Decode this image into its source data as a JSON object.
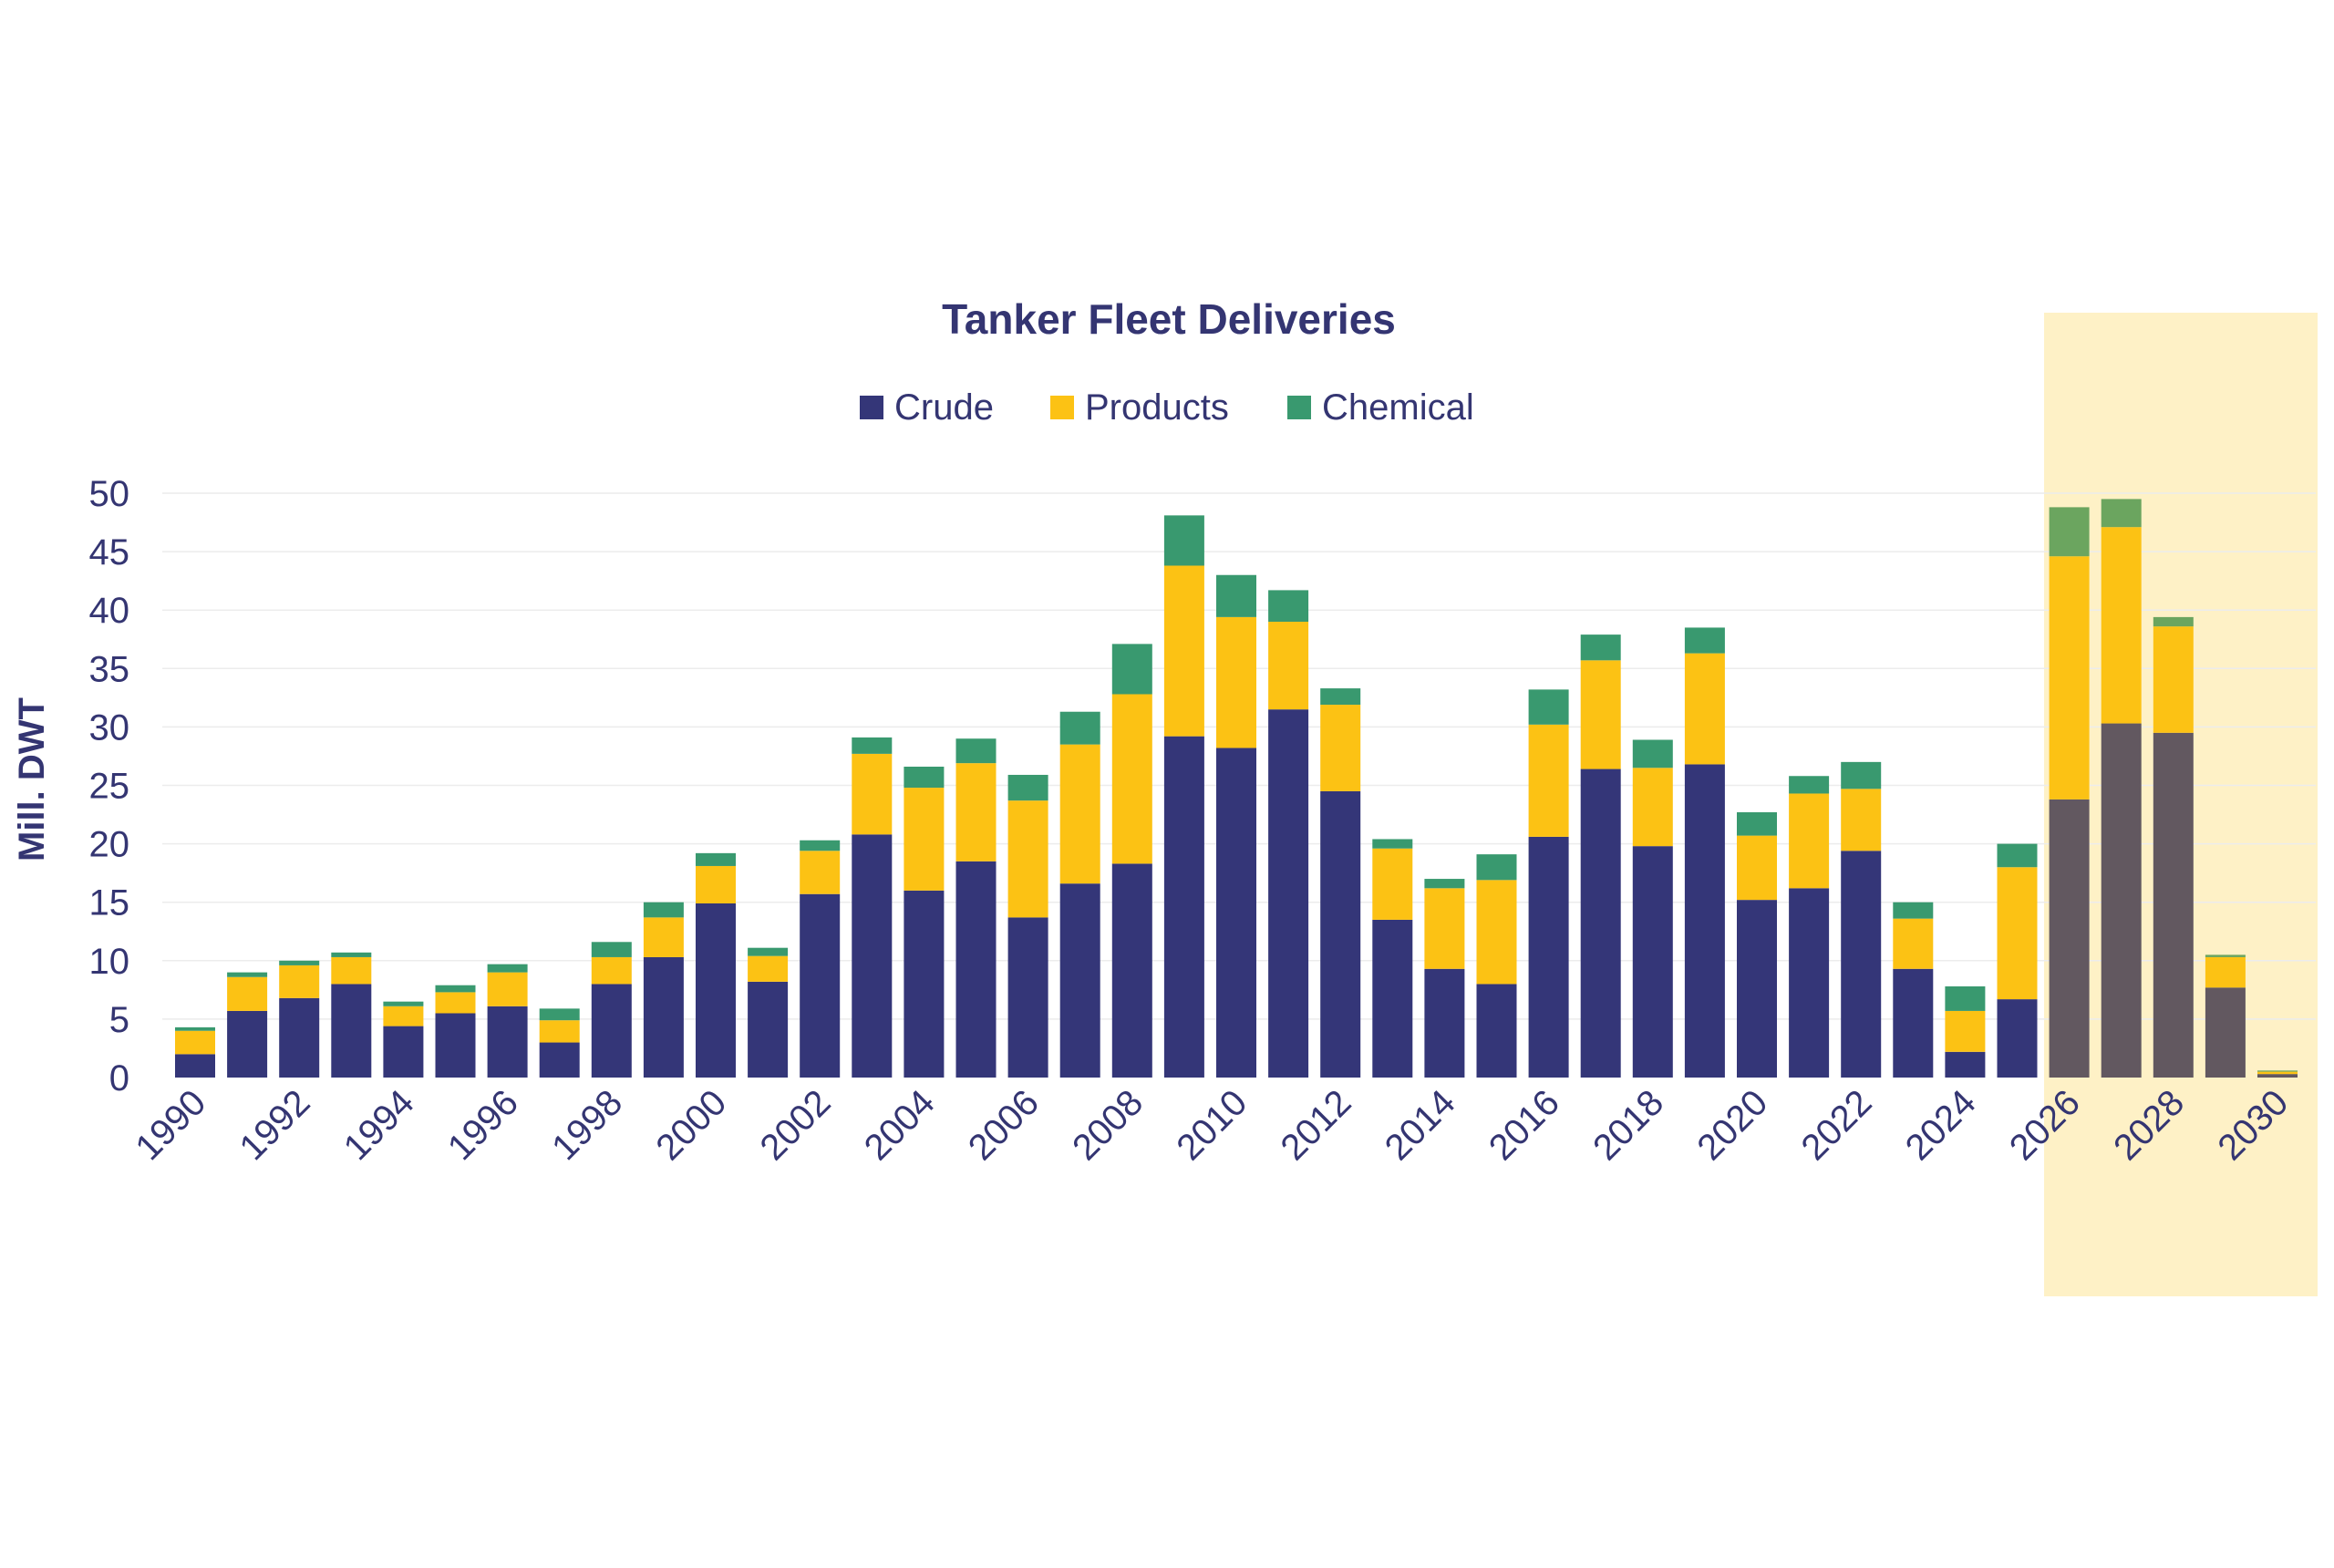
{
  "chart_data": {
    "type": "bar",
    "stacked": true,
    "title": "Tanker Fleet Deliveries",
    "xlabel": "",
    "ylabel": "Mill. DWT",
    "ylim": [
      0,
      50
    ],
    "yticks": [
      0,
      5,
      10,
      15,
      20,
      25,
      30,
      35,
      40,
      45,
      50
    ],
    "grid": true,
    "legend_position": "top",
    "x_tick_labels": [
      "1990",
      "1992",
      "1994",
      "1996",
      "1998",
      "2000",
      "2002",
      "2004",
      "2006",
      "2008",
      "2010",
      "2012",
      "2014",
      "2016",
      "2018",
      "2020",
      "2022",
      "2024",
      "2026",
      "2028",
      "2030"
    ],
    "categories": [
      1990,
      1991,
      1992,
      1993,
      1994,
      1995,
      1996,
      1997,
      1998,
      1999,
      2000,
      2001,
      2002,
      2003,
      2004,
      2005,
      2006,
      2007,
      2008,
      2009,
      2010,
      2011,
      2012,
      2013,
      2014,
      2015,
      2016,
      2017,
      2018,
      2019,
      2020,
      2021,
      2022,
      2023,
      2024,
      2025,
      2026,
      2027,
      2028,
      2029,
      2030
    ],
    "series": [
      {
        "name": "Crude",
        "color": "#343678",
        "values": [
          2.0,
          5.7,
          6.8,
          8.0,
          4.4,
          5.5,
          6.1,
          3.0,
          8.0,
          10.3,
          14.9,
          8.2,
          15.7,
          20.8,
          16.0,
          18.5,
          13.7,
          16.6,
          18.3,
          29.2,
          28.2,
          31.5,
          24.5,
          13.5,
          9.3,
          8.0,
          20.6,
          26.4,
          19.8,
          26.8,
          15.2,
          16.2,
          19.4,
          9.3,
          2.2,
          6.7,
          23.8,
          30.3,
          29.5,
          7.7,
          0.3
        ]
      },
      {
        "name": "Products",
        "color": "#FCC214",
        "values": [
          2.0,
          2.9,
          2.8,
          2.3,
          1.7,
          1.8,
          2.9,
          1.9,
          2.3,
          3.4,
          3.2,
          2.2,
          3.7,
          6.9,
          8.8,
          8.4,
          10.0,
          11.9,
          14.5,
          14.6,
          11.2,
          7.5,
          7.4,
          6.1,
          6.9,
          8.9,
          9.6,
          9.3,
          6.7,
          9.5,
          5.5,
          8.1,
          5.3,
          4.3,
          3.5,
          11.3,
          20.8,
          16.8,
          9.1,
          2.6,
          0.2
        ]
      },
      {
        "name": "Chemical",
        "color": "#39996F",
        "values": [
          0.3,
          0.4,
          0.4,
          0.4,
          0.4,
          0.6,
          0.7,
          1.0,
          1.3,
          1.3,
          1.1,
          0.7,
          0.9,
          1.4,
          1.8,
          2.1,
          2.2,
          2.8,
          4.3,
          4.3,
          3.6,
          2.7,
          1.4,
          0.8,
          0.8,
          2.2,
          3.0,
          2.2,
          2.4,
          2.2,
          2.0,
          1.5,
          2.3,
          1.4,
          2.1,
          2.0,
          4.2,
          2.4,
          0.8,
          0.2,
          0.1
        ]
      }
    ],
    "forecast": {
      "from_category": 2026,
      "to_category": 2030,
      "highlight_color": "#FEF1C6",
      "series_colors": [
        "#625860",
        "#FCC214",
        "#6BA55F"
      ]
    }
  }
}
